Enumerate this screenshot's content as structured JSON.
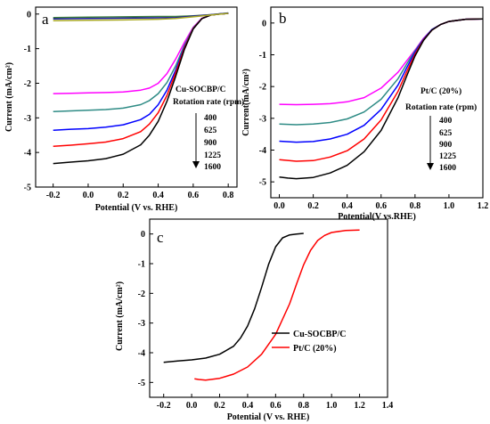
{
  "chart_data": [
    {
      "panel": "a",
      "type": "line",
      "xlabel": "Potential (V vs. RHE)",
      "ylabel": "Current (mA/cm²)",
      "xlim": [
        -0.3,
        0.85
      ],
      "ylim": [
        -5,
        0.2
      ],
      "xticks": [
        "-0.2",
        "0.0",
        "0.2",
        "0.4",
        "0.6",
        "0.8"
      ],
      "xtick_values": [
        -0.2,
        0.0,
        0.2,
        0.4,
        0.6,
        0.8
      ],
      "yticks": [
        "0",
        "-1",
        "-2",
        "-3",
        "-4",
        "-5"
      ],
      "ytick_values": [
        0,
        -1,
        -2,
        -3,
        -4,
        -5
      ],
      "annotation": {
        "title": "Cu-SOCBP/C",
        "subtitle": "Rotation rate (rpm)",
        "rates": [
          "400",
          "625",
          "900",
          "1225",
          "1600"
        ]
      },
      "series": [
        {
          "color": "#ff00ff",
          "x": [
            -0.2,
            -0.1,
            0.0,
            0.1,
            0.2,
            0.3,
            0.35,
            0.4,
            0.45,
            0.5,
            0.55,
            0.6,
            0.65,
            0.7,
            0.75,
            0.8
          ],
          "y": [
            -2.3,
            -2.29,
            -2.28,
            -2.27,
            -2.25,
            -2.2,
            -2.14,
            -2.0,
            -1.72,
            -1.3,
            -0.82,
            -0.38,
            -0.12,
            -0.03,
            0.0,
            0.02
          ]
        },
        {
          "color": "#2e8b85",
          "x": [
            -0.2,
            -0.1,
            0.0,
            0.1,
            0.2,
            0.3,
            0.35,
            0.4,
            0.45,
            0.5,
            0.55,
            0.6,
            0.65,
            0.7,
            0.75,
            0.8
          ],
          "y": [
            -2.82,
            -2.8,
            -2.78,
            -2.76,
            -2.72,
            -2.62,
            -2.5,
            -2.3,
            -1.98,
            -1.5,
            -0.9,
            -0.4,
            -0.13,
            -0.03,
            0.0,
            0.02
          ]
        },
        {
          "color": "#0000ff",
          "x": [
            -0.2,
            -0.1,
            0.0,
            0.1,
            0.2,
            0.3,
            0.35,
            0.4,
            0.45,
            0.5,
            0.55,
            0.6,
            0.65,
            0.7,
            0.75,
            0.8
          ],
          "y": [
            -3.36,
            -3.33,
            -3.31,
            -3.27,
            -3.2,
            -3.05,
            -2.9,
            -2.62,
            -2.2,
            -1.62,
            -0.95,
            -0.42,
            -0.13,
            -0.03,
            0.0,
            0.02
          ]
        },
        {
          "color": "#ff0000",
          "x": [
            -0.2,
            -0.1,
            0.0,
            0.1,
            0.2,
            0.3,
            0.35,
            0.4,
            0.45,
            0.5,
            0.55,
            0.6,
            0.65,
            0.7,
            0.75,
            0.8
          ],
          "y": [
            -3.82,
            -3.79,
            -3.75,
            -3.7,
            -3.6,
            -3.4,
            -3.18,
            -2.85,
            -2.35,
            -1.7,
            -0.98,
            -0.42,
            -0.13,
            -0.03,
            0.0,
            0.02
          ]
        },
        {
          "color": "#000000",
          "x": [
            -0.2,
            -0.1,
            0.0,
            0.1,
            0.2,
            0.3,
            0.35,
            0.4,
            0.45,
            0.5,
            0.55,
            0.6,
            0.65,
            0.7,
            0.75,
            0.8
          ],
          "y": [
            -4.32,
            -4.28,
            -4.24,
            -4.18,
            -4.05,
            -3.78,
            -3.5,
            -3.1,
            -2.52,
            -1.8,
            -1.02,
            -0.43,
            -0.13,
            -0.03,
            0.0,
            0.02
          ]
        },
        {
          "color": "#3c7d3c",
          "x": [
            -0.2,
            0.0,
            0.2,
            0.4,
            0.5,
            0.6,
            0.7,
            0.8
          ],
          "y": [
            -0.1,
            -0.09,
            -0.08,
            -0.07,
            -0.07,
            -0.05,
            -0.02,
            0.03
          ]
        },
        {
          "color": "#1a1a99",
          "x": [
            -0.2,
            0.0,
            0.2,
            0.4,
            0.5,
            0.6,
            0.7,
            0.8
          ],
          "y": [
            -0.14,
            -0.13,
            -0.12,
            -0.11,
            -0.1,
            -0.06,
            -0.02,
            0.03
          ]
        },
        {
          "color": "#aaaa22",
          "x": [
            -0.2,
            0.0,
            0.2,
            0.4,
            0.5,
            0.6,
            0.7,
            0.8
          ],
          "y": [
            -0.19,
            -0.18,
            -0.17,
            -0.15,
            -0.13,
            -0.08,
            -0.03,
            0.02
          ]
        }
      ]
    },
    {
      "panel": "b",
      "type": "line",
      "xlabel": "Potential(V vs.RHE)",
      "ylabel": "Current(mA/cm²)",
      "xlim": [
        -0.05,
        1.2
      ],
      "ylim": [
        -5.5,
        0.5
      ],
      "xticks": [
        "0.0",
        "0.2",
        "0.4",
        "0.6",
        "0.8",
        "1.0",
        "1.2"
      ],
      "xtick_values": [
        0.0,
        0.2,
        0.4,
        0.6,
        0.8,
        1.0,
        1.2
      ],
      "yticks": [
        "0",
        "-1",
        "-2",
        "-3",
        "-4",
        "-5"
      ],
      "ytick_values": [
        0,
        -1,
        -2,
        -3,
        -4,
        -5
      ],
      "annotation": {
        "title": "Pt/C (20%)",
        "subtitle": "Rotation rate (rpm)",
        "rates": [
          "400",
          "625",
          "900",
          "1225",
          "1600"
        ]
      },
      "series": [
        {
          "color": "#ff00ff",
          "x": [
            0.0,
            0.1,
            0.2,
            0.3,
            0.4,
            0.5,
            0.6,
            0.7,
            0.75,
            0.8,
            0.85,
            0.9,
            0.95,
            1.0,
            1.1,
            1.2
          ],
          "y": [
            -2.56,
            -2.57,
            -2.56,
            -2.54,
            -2.48,
            -2.35,
            -2.05,
            -1.55,
            -1.2,
            -0.85,
            -0.48,
            -0.2,
            -0.05,
            0.05,
            0.12,
            0.13
          ]
        },
        {
          "color": "#2e8b85",
          "x": [
            0.0,
            0.1,
            0.2,
            0.3,
            0.4,
            0.5,
            0.6,
            0.7,
            0.75,
            0.8,
            0.85,
            0.9,
            0.95,
            1.0,
            1.1,
            1.2
          ],
          "y": [
            -3.18,
            -3.2,
            -3.18,
            -3.13,
            -3.02,
            -2.8,
            -2.4,
            -1.75,
            -1.3,
            -0.88,
            -0.5,
            -0.2,
            -0.05,
            0.05,
            0.12,
            0.13
          ]
        },
        {
          "color": "#0000ff",
          "x": [
            0.0,
            0.1,
            0.2,
            0.3,
            0.4,
            0.5,
            0.6,
            0.7,
            0.75,
            0.8,
            0.85,
            0.9,
            0.95,
            1.0,
            1.1,
            1.2
          ],
          "y": [
            -3.72,
            -3.75,
            -3.73,
            -3.65,
            -3.5,
            -3.22,
            -2.72,
            -1.95,
            -1.42,
            -0.92,
            -0.51,
            -0.21,
            -0.05,
            0.05,
            0.12,
            0.13
          ]
        },
        {
          "color": "#ff0000",
          "x": [
            0.0,
            0.1,
            0.2,
            0.3,
            0.4,
            0.5,
            0.6,
            0.7,
            0.75,
            0.8,
            0.85,
            0.9,
            0.95,
            1.0,
            1.1,
            1.2
          ],
          "y": [
            -4.3,
            -4.35,
            -4.33,
            -4.22,
            -4.02,
            -3.65,
            -3.05,
            -2.15,
            -1.55,
            -0.98,
            -0.53,
            -0.22,
            -0.05,
            0.05,
            0.12,
            0.13
          ]
        },
        {
          "color": "#000000",
          "x": [
            0.0,
            0.05,
            0.1,
            0.2,
            0.3,
            0.4,
            0.5,
            0.6,
            0.7,
            0.75,
            0.8,
            0.85,
            0.9,
            0.95,
            1.0,
            1.1,
            1.2
          ],
          "y": [
            -4.85,
            -4.88,
            -4.9,
            -4.86,
            -4.72,
            -4.48,
            -4.05,
            -3.38,
            -2.35,
            -1.68,
            -1.04,
            -0.55,
            -0.22,
            -0.05,
            0.05,
            0.12,
            0.13
          ]
        }
      ]
    },
    {
      "panel": "c",
      "type": "line",
      "xlabel": "Potential (V vs. RHE)",
      "ylabel": "Current (mA/cm²)",
      "xlim": [
        -0.3,
        1.4
      ],
      "ylim": [
        -5.5,
        0.5
      ],
      "xticks": [
        "-0.2",
        "0.0",
        "0.2",
        "0.4",
        "0.6",
        "0.8",
        "1.0",
        "1.2",
        "1.4"
      ],
      "xtick_values": [
        -0.2,
        0.0,
        0.2,
        0.4,
        0.6,
        0.8,
        1.0,
        1.2,
        1.4
      ],
      "yticks": [
        "0",
        "-1",
        "-2",
        "-3",
        "-4",
        "-5"
      ],
      "ytick_values": [
        0,
        -1,
        -2,
        -3,
        -4,
        -5
      ],
      "series": [
        {
          "name": "Cu-SOCBP/C",
          "color": "#000000",
          "x": [
            -0.2,
            -0.1,
            0.0,
            0.1,
            0.2,
            0.3,
            0.35,
            0.4,
            0.45,
            0.5,
            0.55,
            0.6,
            0.65,
            0.7,
            0.75,
            0.8
          ],
          "y": [
            -4.32,
            -4.28,
            -4.24,
            -4.18,
            -4.05,
            -3.78,
            -3.5,
            -3.1,
            -2.52,
            -1.8,
            -1.02,
            -0.43,
            -0.13,
            -0.03,
            0.0,
            0.02
          ]
        },
        {
          "name": "Pt/C (20%)",
          "color": "#ff0000",
          "x": [
            0.02,
            0.05,
            0.1,
            0.2,
            0.3,
            0.4,
            0.5,
            0.6,
            0.7,
            0.75,
            0.8,
            0.85,
            0.9,
            0.95,
            1.0,
            1.1,
            1.2
          ],
          "y": [
            -4.88,
            -4.9,
            -4.92,
            -4.86,
            -4.72,
            -4.48,
            -4.05,
            -3.38,
            -2.35,
            -1.68,
            -1.04,
            -0.55,
            -0.22,
            -0.05,
            0.05,
            0.12,
            0.13
          ]
        }
      ]
    }
  ],
  "icons": {
    "rate_arrow": "down-arrow-icon"
  }
}
